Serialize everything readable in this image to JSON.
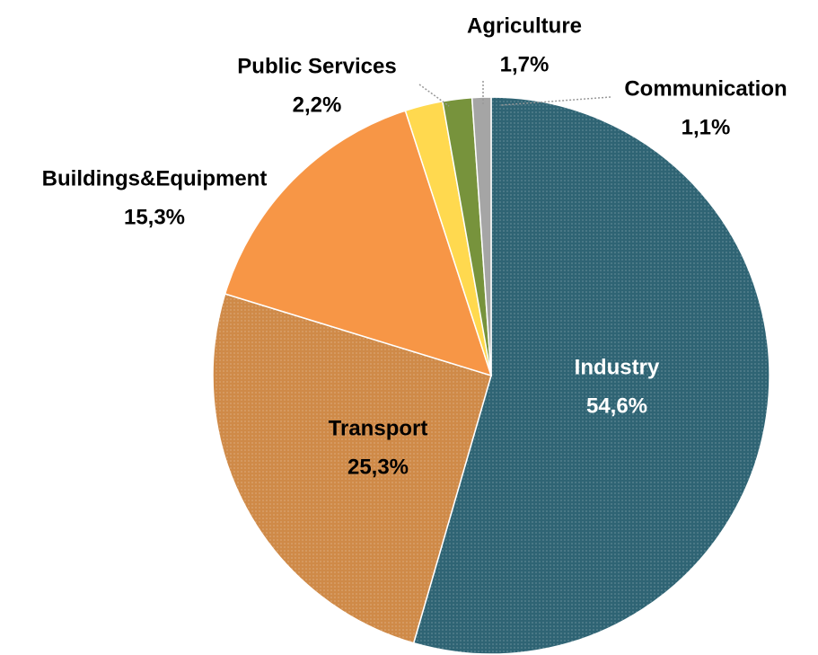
{
  "chart_data": {
    "type": "pie",
    "categories": [
      "Industry",
      "Transport",
      "Buildings&Equipment",
      "Public Services",
      "Agriculture",
      "Communication"
    ],
    "values": [
      54.6,
      25.3,
      15.3,
      2.2,
      1.7,
      1.1
    ],
    "value_labels": [
      "54,6%",
      "25,3%",
      "15,3%",
      "2,2%",
      "1,7%",
      "1,1%"
    ],
    "colors": [
      "#2f6474",
      "#cf8a48",
      "#f79646",
      "#ffd94f",
      "#77933c",
      "#a5a5a5"
    ]
  }
}
